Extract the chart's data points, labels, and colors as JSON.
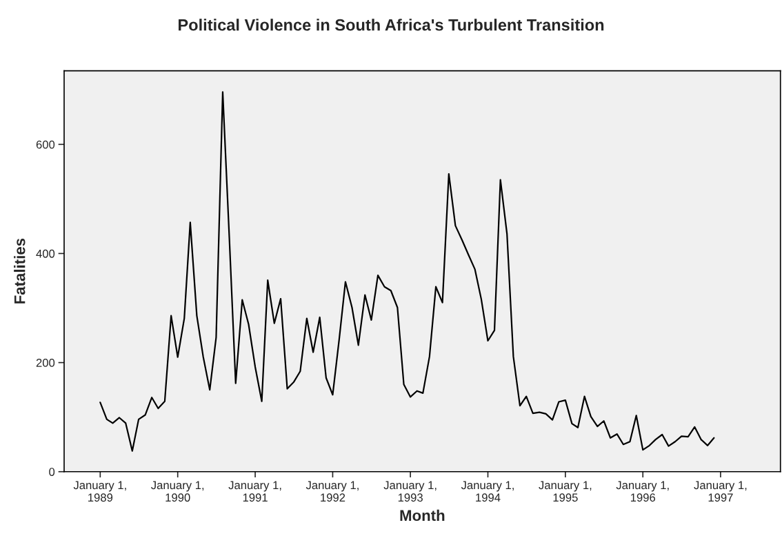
{
  "chart_data": {
    "type": "line",
    "title": "Political Violence in South Africa's Turbulent Transition",
    "xlabel": "Month",
    "ylabel": "Fatalities",
    "x": [
      "1989-01",
      "1989-02",
      "1989-03",
      "1989-04",
      "1989-05",
      "1989-06",
      "1989-07",
      "1989-08",
      "1989-09",
      "1989-10",
      "1989-11",
      "1989-12",
      "1990-01",
      "1990-02",
      "1990-03",
      "1990-04",
      "1990-05",
      "1990-06",
      "1990-07",
      "1990-08",
      "1990-09",
      "1990-10",
      "1990-11",
      "1990-12",
      "1991-01",
      "1991-02",
      "1991-03",
      "1991-04",
      "1991-05",
      "1991-06",
      "1991-07",
      "1991-08",
      "1991-09",
      "1991-10",
      "1991-11",
      "1991-12",
      "1992-01",
      "1992-02",
      "1992-03",
      "1992-04",
      "1992-05",
      "1992-06",
      "1992-07",
      "1992-08",
      "1992-09",
      "1992-10",
      "1992-11",
      "1992-12",
      "1993-01",
      "1993-02",
      "1993-03",
      "1993-04",
      "1993-05",
      "1993-06",
      "1993-07",
      "1993-08",
      "1993-09",
      "1993-10",
      "1993-11",
      "1993-12",
      "1994-01",
      "1994-02",
      "1994-03",
      "1994-04",
      "1994-05",
      "1994-06",
      "1994-07",
      "1994-08",
      "1994-09",
      "1994-10",
      "1994-11",
      "1994-12",
      "1995-01",
      "1995-02",
      "1995-03",
      "1995-04",
      "1995-05",
      "1995-06",
      "1995-07",
      "1995-08",
      "1995-09",
      "1995-10",
      "1995-11",
      "1995-12",
      "1996-01",
      "1996-02",
      "1996-03",
      "1996-04",
      "1996-05",
      "1996-06",
      "1996-07",
      "1996-08",
      "1996-09",
      "1996-10",
      "1996-11",
      "1996-12"
    ],
    "series": [
      {
        "color": "#000000",
        "values": [
          127,
          96,
          89,
          99,
          89,
          38,
          96,
          104,
          136,
          116,
          129,
          286,
          210,
          281,
          457,
          286,
          211,
          150,
          246,
          696,
          430,
          162,
          315,
          270,
          192,
          129,
          351,
          272,
          317,
          152,
          164,
          184,
          281,
          219,
          283,
          172,
          141,
          244,
          348,
          301,
          232,
          324,
          278,
          360,
          339,
          332,
          301,
          160,
          137,
          148,
          144,
          211,
          339,
          310,
          546,
          451,
          425,
          398,
          371,
          316,
          240,
          259,
          535,
          436,
          211,
          121,
          138,
          107,
          109,
          106,
          95,
          128,
          131,
          88,
          81,
          138,
          101,
          83,
          93,
          62,
          69,
          50,
          55,
          103,
          40,
          48,
          59,
          68,
          47,
          55,
          65,
          64,
          82,
          59,
          48,
          62
        ]
      }
    ],
    "xlim": [
      "1988-07-15",
      "1997-10-10"
    ],
    "xticks": [
      {
        "value": "1989-01-01",
        "label": "January 1,\n1989"
      },
      {
        "value": "1990-01-01",
        "label": "January 1,\n1990"
      },
      {
        "value": "1991-01-01",
        "label": "January 1,\n1991"
      },
      {
        "value": "1992-01-01",
        "label": "January 1,\n1992"
      },
      {
        "value": "1993-01-01",
        "label": "January 1,\n1993"
      },
      {
        "value": "1994-01-01",
        "label": "January 1,\n1994"
      },
      {
        "value": "1995-01-01",
        "label": "January 1,\n1995"
      },
      {
        "value": "1996-01-01",
        "label": "January 1,\n1996"
      },
      {
        "value": "1997-01-01",
        "label": "January 1,\n1997"
      }
    ],
    "ylim": [
      0,
      735
    ],
    "yticks": [
      0,
      200,
      400,
      600
    ],
    "grid": false
  }
}
